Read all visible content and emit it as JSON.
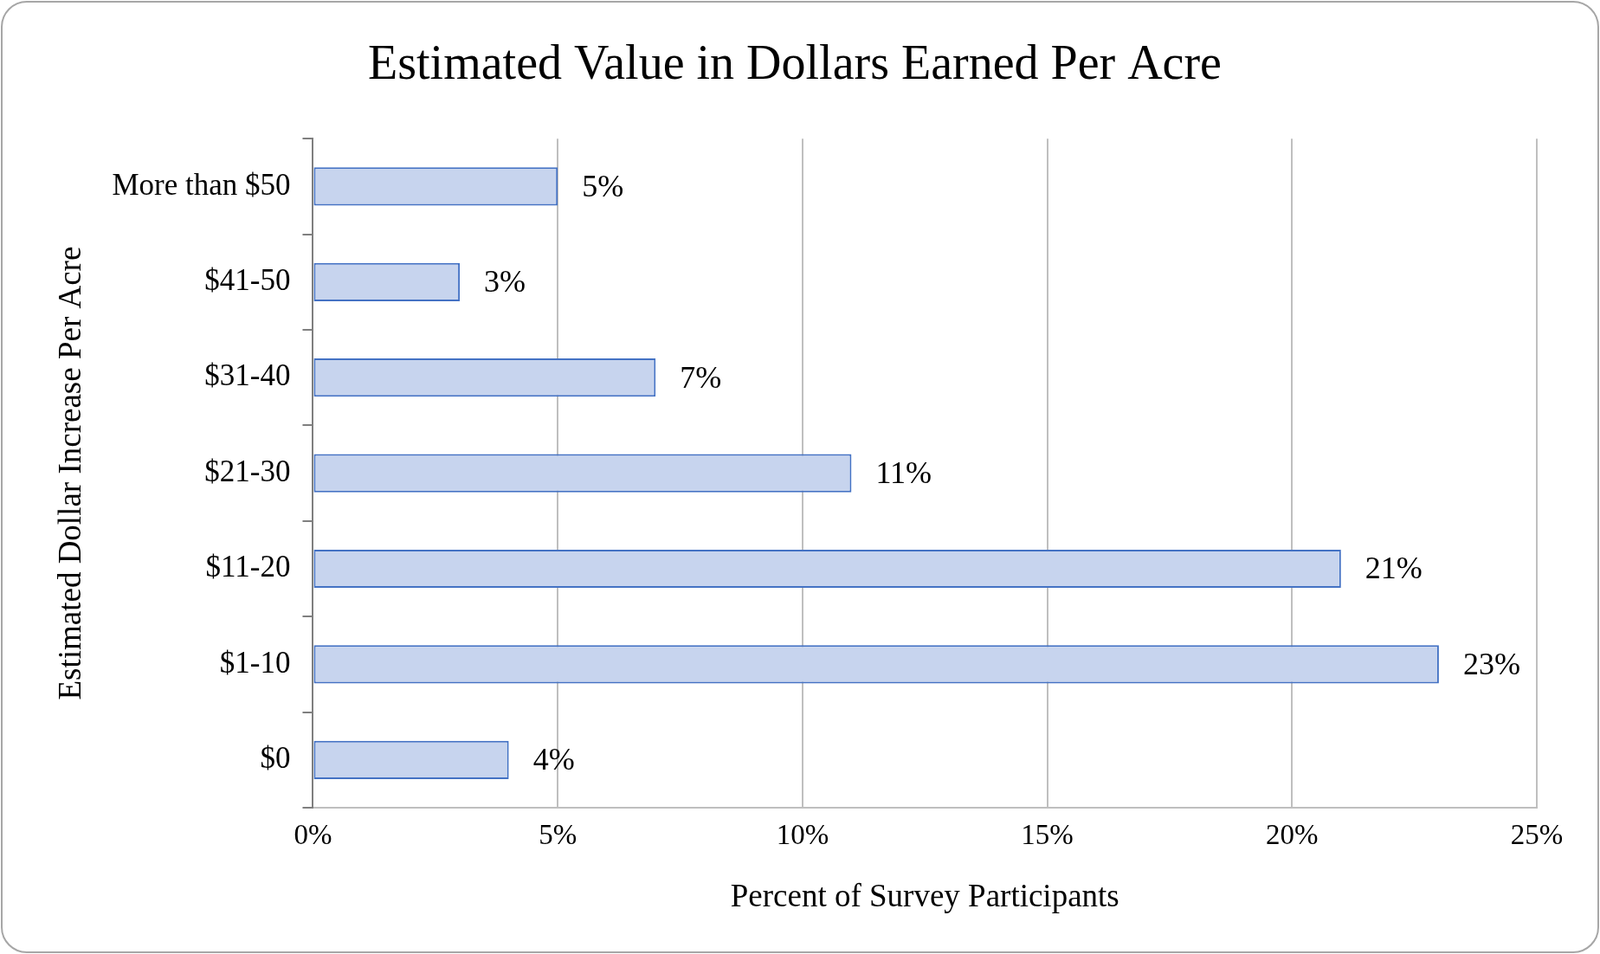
{
  "chart_data": {
    "type": "bar",
    "orientation": "horizontal",
    "title": "Estimated Value in Dollars Earned Per Acre",
    "x_label": "Percent of Survey Participants",
    "y_label": "Estimated Dollar Increase Per Acre",
    "categories": [
      "More than $50",
      "$41-50",
      "$31-40",
      "$21-30",
      "$11-20",
      "$1-10",
      "$0"
    ],
    "values": [
      5,
      3,
      7,
      11,
      21,
      23,
      4
    ],
    "value_labels": [
      "5%",
      "3%",
      "7%",
      "11%",
      "21%",
      "23%",
      "4%"
    ],
    "data_labels": true,
    "color": "#c7d4ee",
    "xlim": [
      0,
      25
    ],
    "xticks": [
      {
        "value": 0,
        "label": "0%"
      },
      {
        "value": 5,
        "label": "5%"
      },
      {
        "value": 10,
        "label": "10%"
      },
      {
        "value": 15,
        "label": "15%"
      },
      {
        "value": 20,
        "label": "20%"
      },
      {
        "value": 25,
        "label": "25%"
      }
    ],
    "grid": true
  }
}
